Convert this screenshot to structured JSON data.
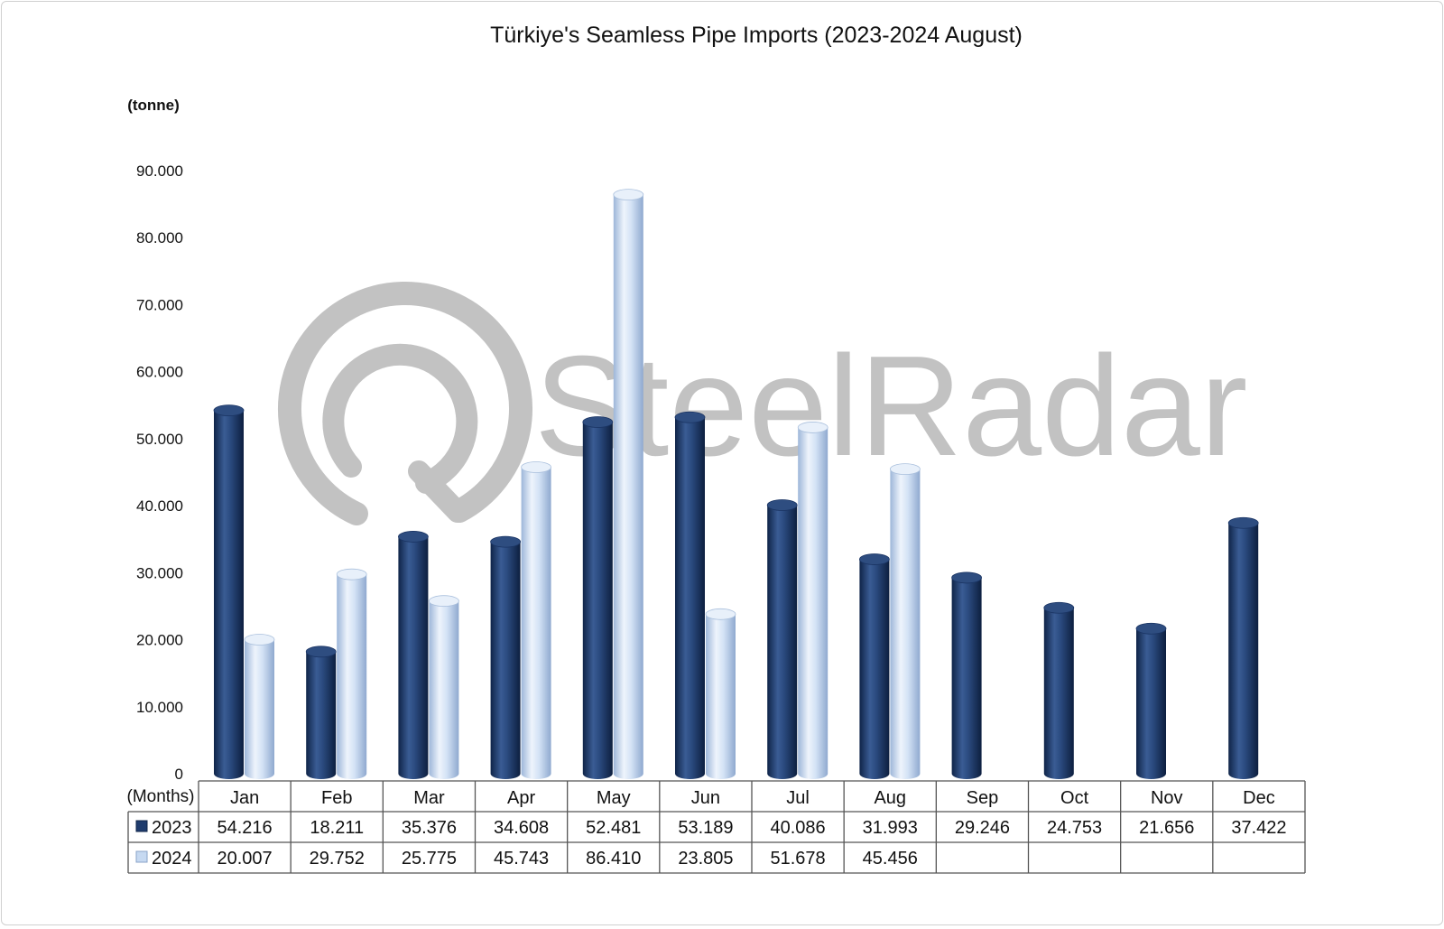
{
  "chart_data": {
    "type": "bar",
    "title": "Türkiye's Seamless Pipe Imports (2023-2024 August)",
    "ylabel": "(tonne)",
    "xlabel": "(Months)",
    "ylim": [
      0,
      90000
    ],
    "yticks": [
      0,
      10000,
      20000,
      30000,
      40000,
      50000,
      60000,
      70000,
      80000,
      90000
    ],
    "ytick_labels": [
      "0",
      "10.000",
      "20.000",
      "30.000",
      "40.000",
      "50.000",
      "60.000",
      "70.000",
      "80.000",
      "90.000"
    ],
    "categories": [
      "Jan",
      "Feb",
      "Mar",
      "Apr",
      "May",
      "Jun",
      "Jul",
      "Aug",
      "Sep",
      "Oct",
      "Nov",
      "Dec"
    ],
    "series": [
      {
        "name": "2023",
        "color": "#1f3c6e",
        "values": [
          54216,
          18211,
          35376,
          34608,
          52481,
          53189,
          40086,
          31993,
          29246,
          24753,
          21656,
          37422
        ],
        "labels": [
          "54.216",
          "18.211",
          "35.376",
          "34.608",
          "52.481",
          "53.189",
          "40.086",
          "31.993",
          "29.246",
          "24.753",
          "21.656",
          "37.422"
        ]
      },
      {
        "name": "2024",
        "color": "#c6d9f1",
        "values": [
          20007,
          29752,
          25775,
          45743,
          86410,
          23805,
          51678,
          45456,
          null,
          null,
          null,
          null
        ],
        "labels": [
          "20.007",
          "29.752",
          "25.775",
          "45.743",
          "86.410",
          "23.805",
          "51.678",
          "45.456",
          "",
          "",
          "",
          ""
        ]
      }
    ],
    "grid": false,
    "legend": "data-table"
  },
  "watermark": {
    "text": "SteelRadar",
    "color": "#b3b3b3"
  }
}
